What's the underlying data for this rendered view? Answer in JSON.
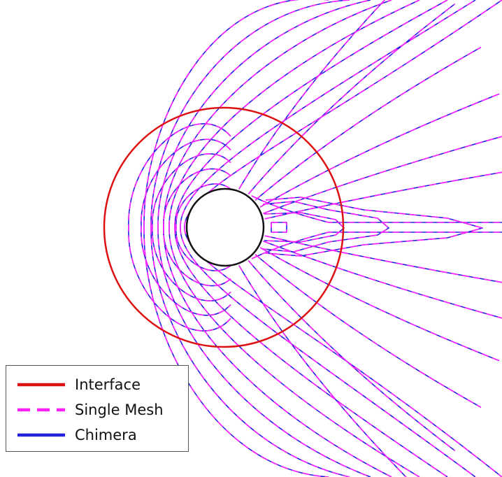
{
  "chart_data": {
    "type": "line",
    "title": "",
    "xlabel": "",
    "ylabel": "",
    "grid": false,
    "legend_position": "bottom-left",
    "series": [
      {
        "name": "Interface",
        "color": "#dd1111",
        "style": "solid"
      },
      {
        "name": "Single Mesh",
        "color": "#ff22ff",
        "style": "dashed"
      },
      {
        "name": "Chimera",
        "color": "#2222dd",
        "style": "solid"
      }
    ],
    "body_color": "#111111"
  }
}
